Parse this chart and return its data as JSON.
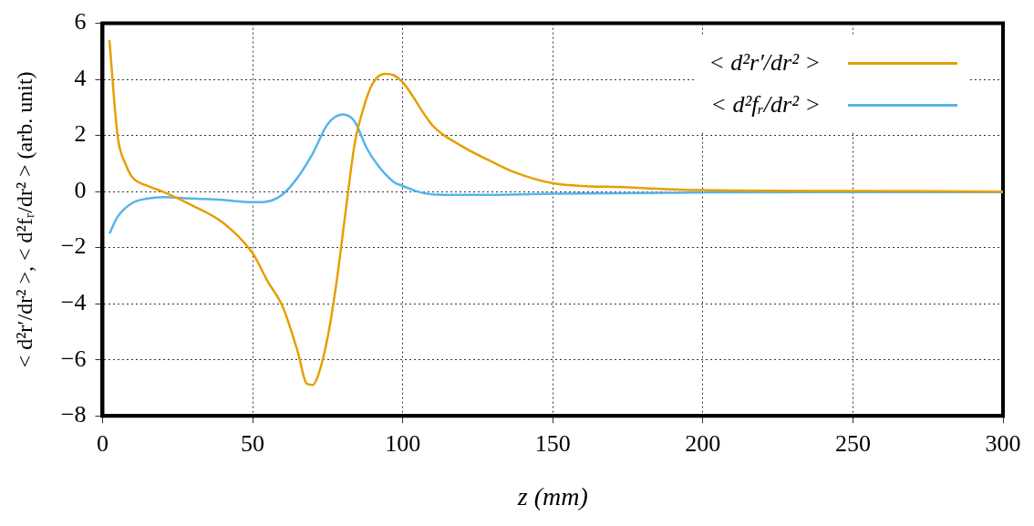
{
  "chart_data": {
    "type": "line",
    "xlabel": "z (mm)",
    "ylabel": "< d²r′/dr² >, < d²fᵣ/dr² > (arb. unit)",
    "xlim": [
      0,
      300
    ],
    "xticks": [
      0,
      50,
      100,
      150,
      200,
      250,
      300
    ],
    "ylim": [
      -8,
      6
    ],
    "yticks": [
      -8,
      -6,
      -4,
      -2,
      0,
      2,
      4,
      6
    ],
    "grid": true,
    "legend": "top right",
    "marker": "none",
    "line_style": "solid",
    "series": [
      {
        "name": "< d²r′/dr² >",
        "color": "#e69f00",
        "x": [
          2.3,
          5,
          8,
          10,
          15,
          20,
          30,
          40,
          50,
          55,
          60,
          65,
          68,
          70,
          72,
          75,
          78,
          81,
          84,
          87,
          90,
          94,
          97,
          100,
          110,
          120,
          130,
          137,
          150,
          175,
          200,
          250,
          300
        ],
        "values": [
          5.4,
          2.0,
          0.9,
          0.5,
          0.2,
          0,
          -0.5,
          -1.1,
          -2.2,
          -3.2,
          -4.1,
          -5.7,
          -6.85,
          -6.9,
          -6.5,
          -5.2,
          -3.2,
          -0.7,
          1.7,
          3.0,
          3.85,
          4.2,
          4.15,
          3.9,
          2.35,
          1.6,
          1.05,
          0.7,
          0.3,
          0.15,
          0.05,
          0.02,
          0
        ]
      },
      {
        "name": "< d²fᵣ/dr² >",
        "color": "#56b4e9",
        "x": [
          2.3,
          5,
          10,
          15,
          20,
          30,
          40,
          50,
          55,
          60,
          65,
          70,
          75,
          80,
          84,
          88,
          92,
          97,
          100,
          105,
          110,
          120,
          150,
          200,
          300
        ],
        "values": [
          -1.5,
          -0.9,
          -0.4,
          -0.25,
          -0.2,
          -0.25,
          -0.3,
          -0.38,
          -0.35,
          -0.1,
          0.5,
          1.35,
          2.4,
          2.75,
          2.5,
          1.55,
          0.9,
          0.35,
          0.2,
          0,
          -0.1,
          -0.12,
          -0.08,
          -0.03,
          -0.02
        ]
      }
    ]
  }
}
